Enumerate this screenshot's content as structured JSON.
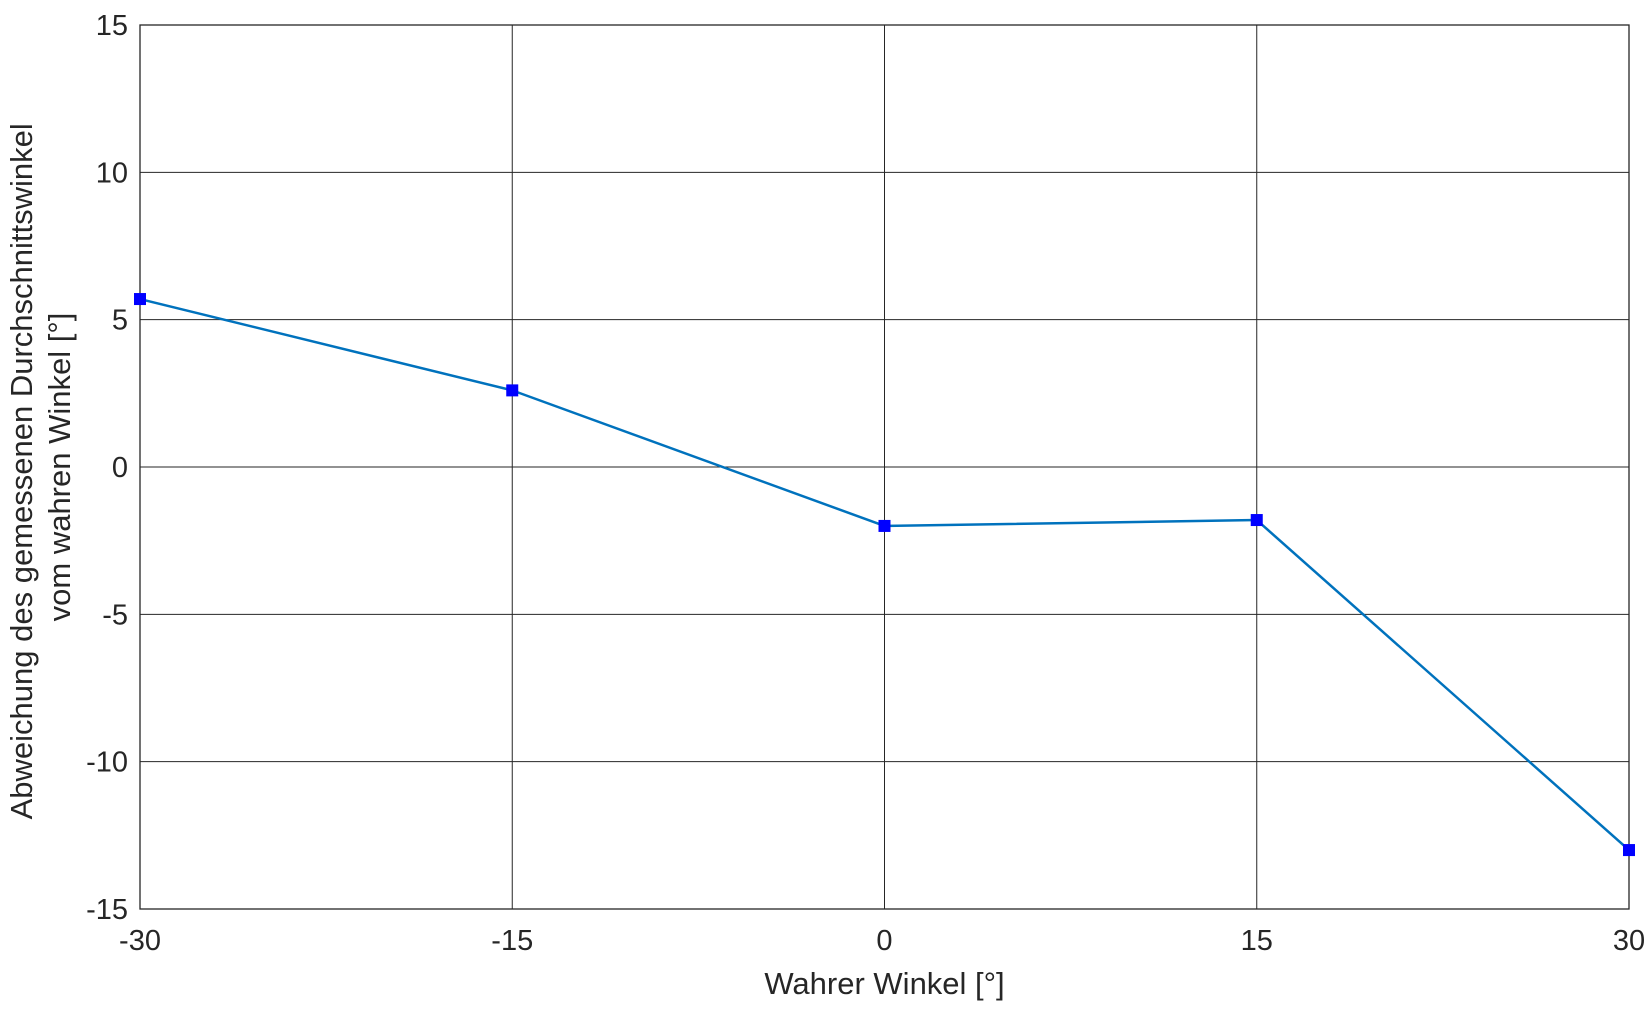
{
  "chart_data": {
    "type": "line",
    "title": "",
    "xlabel": "Wahrer Winkel [°]",
    "ylabel_lines": [
      "Abweichung des gemessenen Durchschnittswinkel",
      "vom wahren Winkel [°]"
    ],
    "xlim": [
      -30,
      30
    ],
    "ylim": [
      -15,
      15
    ],
    "xticks": [
      -30,
      -15,
      0,
      15,
      30
    ],
    "yticks": [
      -15,
      -10,
      -5,
      0,
      5,
      10,
      15
    ],
    "xtick_labels": [
      "-30",
      "-15",
      "0",
      "15",
      "30"
    ],
    "ytick_labels": [
      "-15",
      "-10",
      "-5",
      "0",
      "5",
      "10",
      "15"
    ],
    "grid": true,
    "series": [
      {
        "x": [
          -30,
          -15,
          0,
          15,
          30
        ],
        "y": [
          5.7,
          2.6,
          -2.0,
          -1.8,
          -13.0
        ],
        "line_color": "#0072BD",
        "marker": "square",
        "marker_color": "#0000FF"
      }
    ]
  }
}
